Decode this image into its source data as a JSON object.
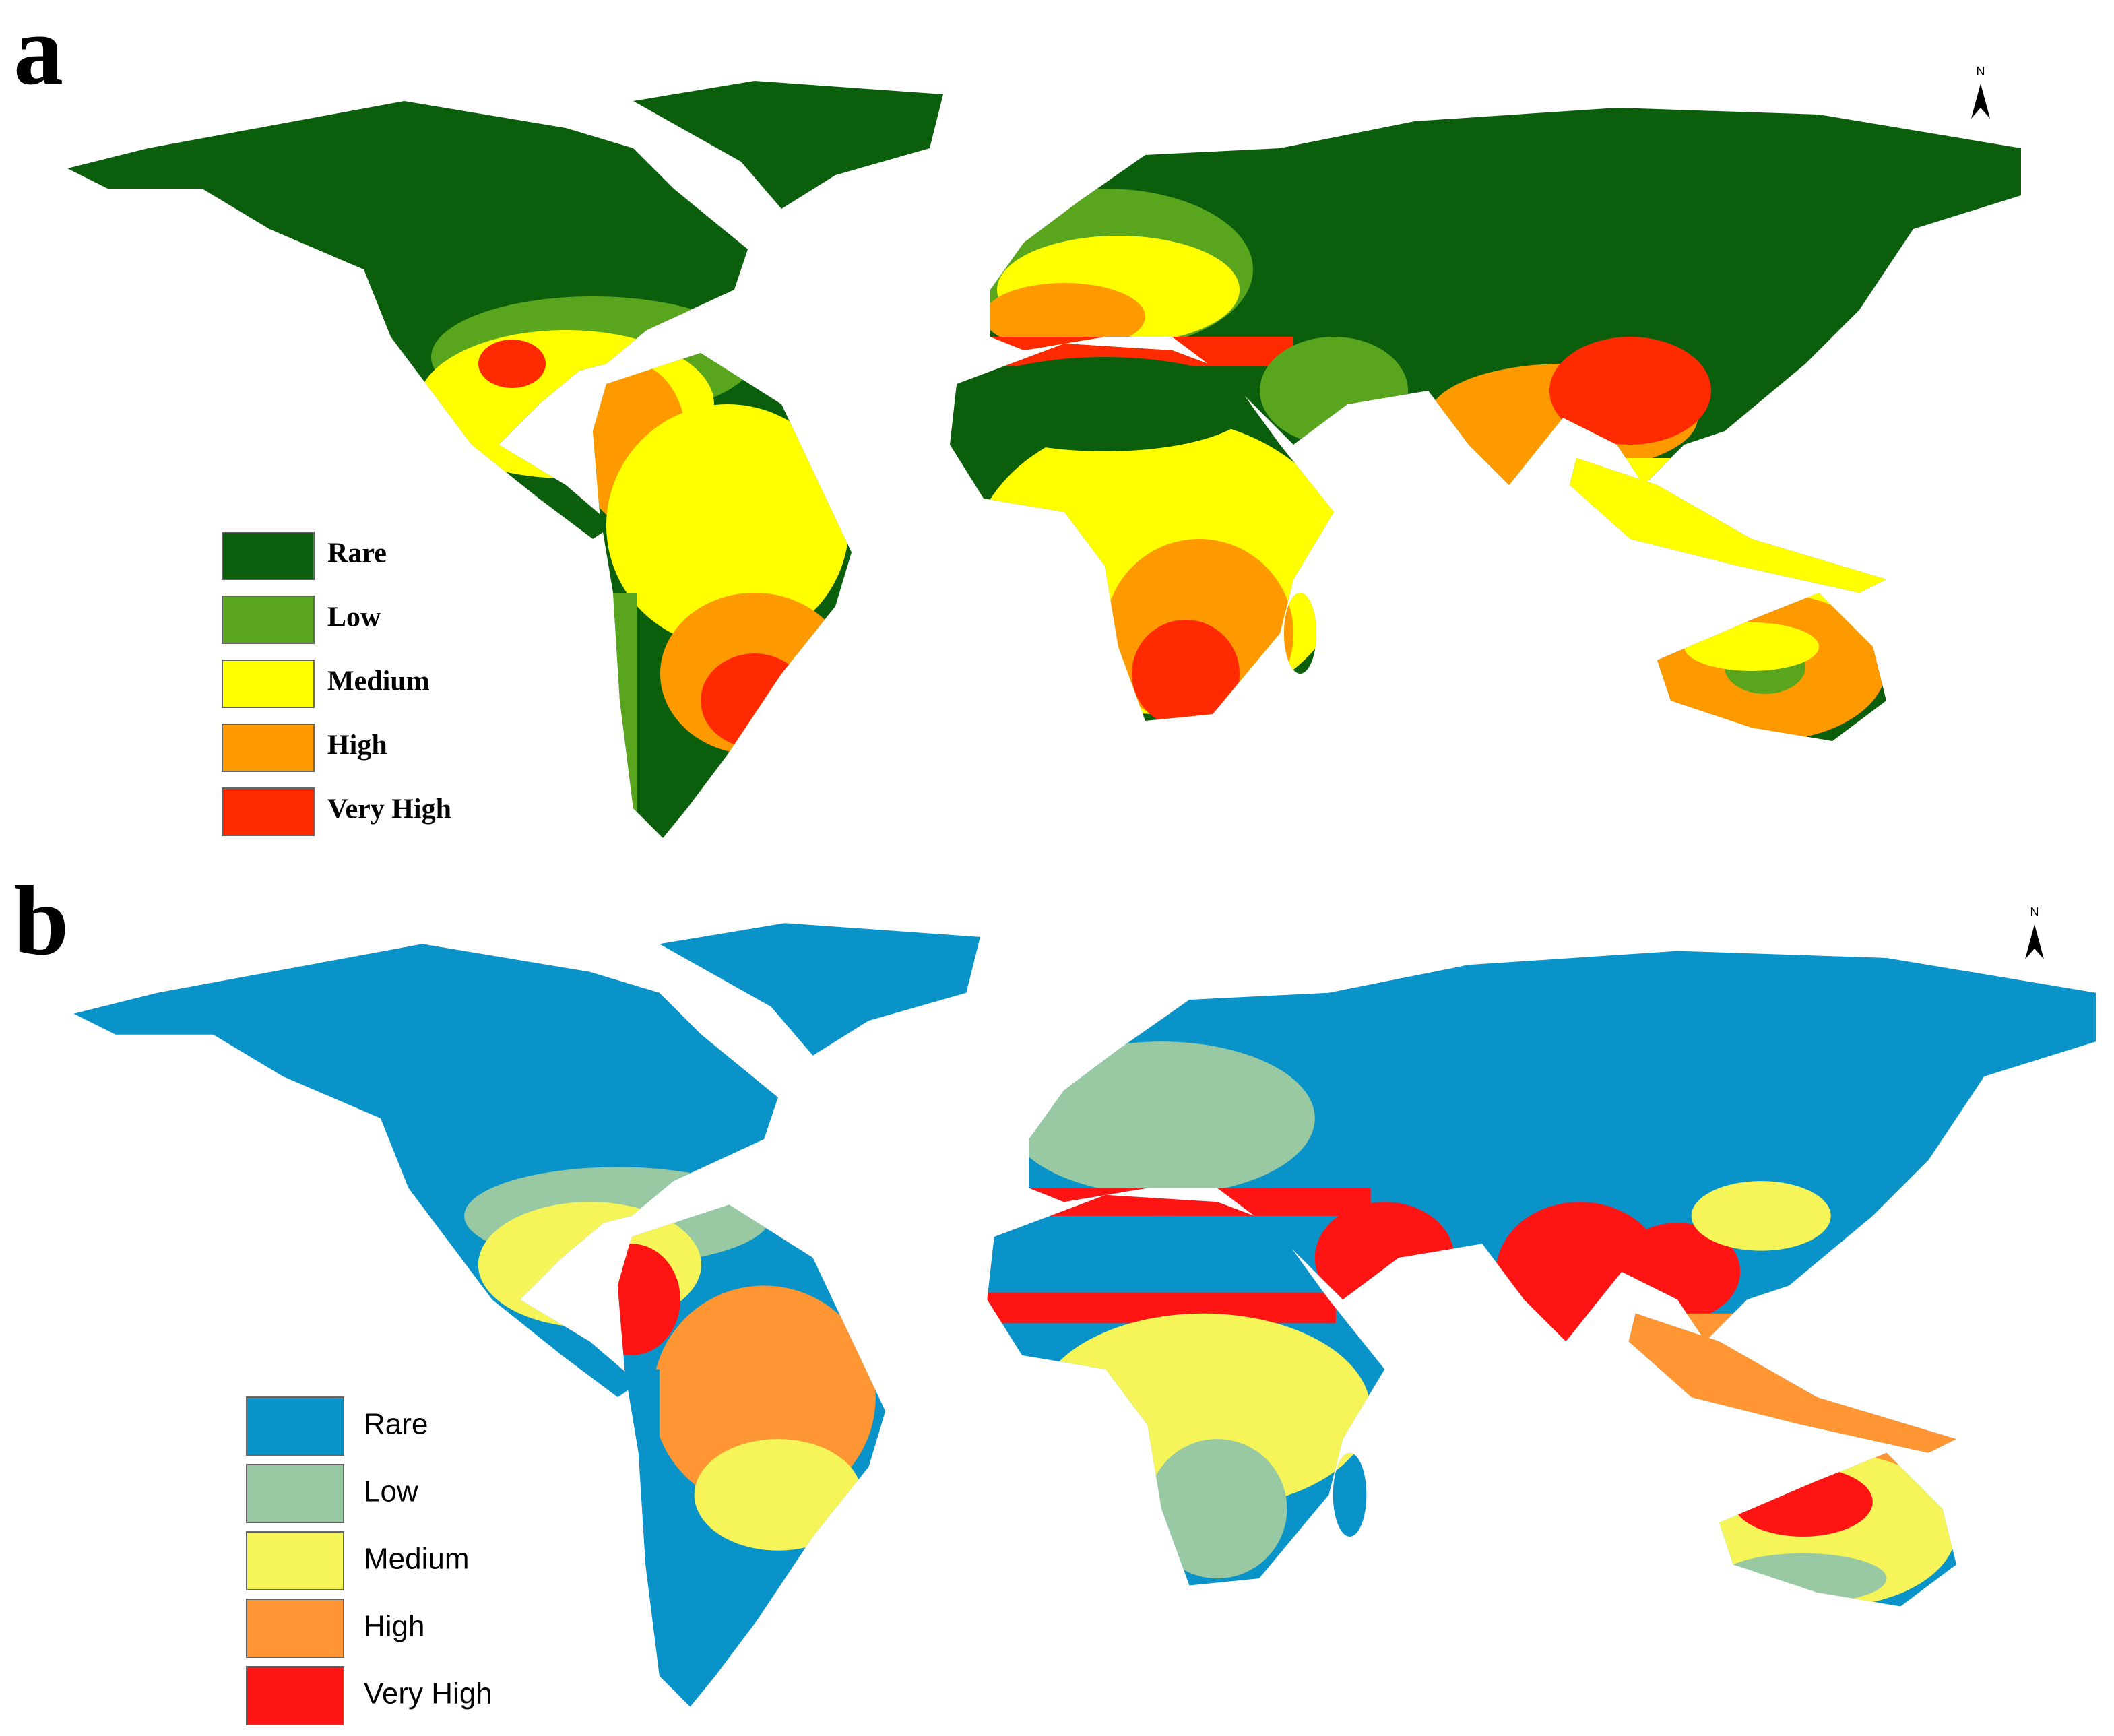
{
  "panels": [
    {
      "label": "a",
      "north_label": "N",
      "legend": [
        {
          "label": "Rare",
          "color": "#0b5e0b"
        },
        {
          "label": "Low",
          "color": "#5aa51e"
        },
        {
          "label": "Medium",
          "color": "#ffff00"
        },
        {
          "label": "High",
          "color": "#ff9900"
        },
        {
          "label": "Very High",
          "color": "#ff2a00"
        }
      ]
    },
    {
      "label": "b",
      "north_label": "N",
      "legend": [
        {
          "label": "Rare",
          "color": "#0a93c9"
        },
        {
          "label": "Low",
          "color": "#98c9a3"
        },
        {
          "label": "Medium",
          "color": "#f5f55a"
        },
        {
          "label": "High",
          "color": "#ff9633"
        },
        {
          "label": "Very High",
          "color": "#ff1414"
        }
      ]
    }
  ]
}
